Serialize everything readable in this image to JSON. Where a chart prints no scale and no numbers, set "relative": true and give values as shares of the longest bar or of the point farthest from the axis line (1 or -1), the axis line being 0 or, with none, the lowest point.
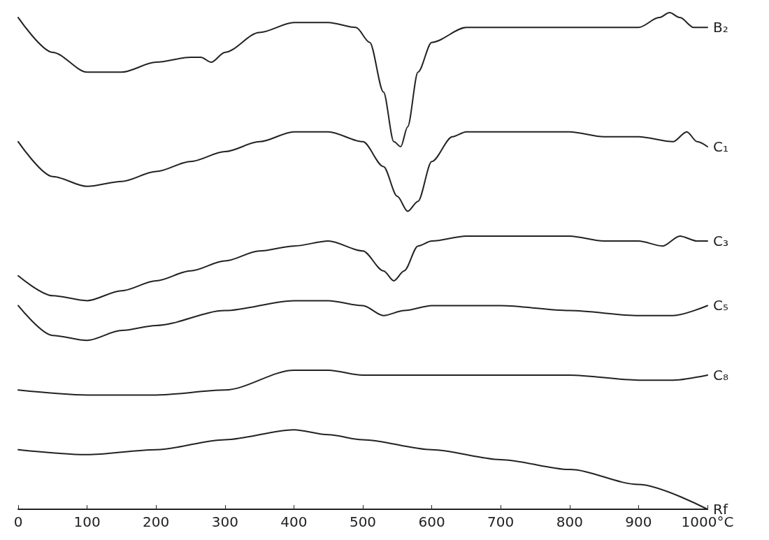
{
  "chart_data": {
    "type": "line",
    "relative": true,
    "legend": false,
    "grid": false,
    "marker": "none",
    "line_style": "solid",
    "tick_labels": "x",
    "xlim": [
      0,
      1000
    ],
    "xticks": [
      0,
      100,
      200,
      300,
      400,
      500,
      600,
      700,
      800,
      900,
      {
        "value": 1000,
        "label": "1000°C"
      }
    ],
    "series": [
      {
        "name": "B₂",
        "color": "#222222",
        "x": [
          0,
          50,
          100,
          150,
          200,
          250,
          265,
          280,
          300,
          350,
          400,
          450,
          490,
          510,
          530,
          545,
          555,
          565,
          580,
          600,
          650,
          700,
          750,
          800,
          850,
          900,
          930,
          945,
          960,
          980,
          1000
        ],
        "values": [
          0.99,
          0.92,
          0.88,
          0.88,
          0.9,
          0.91,
          0.91,
          0.9,
          0.92,
          0.96,
          0.98,
          0.98,
          0.97,
          0.94,
          0.84,
          0.74,
          0.73,
          0.77,
          0.88,
          0.94,
          0.97,
          0.97,
          0.97,
          0.97,
          0.97,
          0.97,
          0.99,
          1,
          0.99,
          0.97,
          0.97
        ]
      },
      {
        "name": "C₁",
        "color": "#222222",
        "x": [
          0,
          50,
          100,
          150,
          200,
          250,
          300,
          350,
          400,
          450,
          500,
          530,
          550,
          565,
          580,
          600,
          630,
          650,
          700,
          750,
          800,
          850,
          900,
          950,
          970,
          985,
          1000
        ],
        "values": [
          0.74,
          0.67,
          0.65,
          0.66,
          0.68,
          0.7,
          0.72,
          0.74,
          0.76,
          0.76,
          0.74,
          0.69,
          0.63,
          0.6,
          0.62,
          0.7,
          0.75,
          0.76,
          0.76,
          0.76,
          0.76,
          0.75,
          0.75,
          0.74,
          0.76,
          0.74,
          0.73
        ]
      },
      {
        "name": "C₃",
        "color": "#222222",
        "x": [
          0,
          50,
          100,
          150,
          200,
          250,
          300,
          350,
          400,
          450,
          500,
          530,
          545,
          560,
          580,
          600,
          650,
          700,
          800,
          850,
          900,
          935,
          960,
          985,
          1000
        ],
        "values": [
          0.47,
          0.43,
          0.42,
          0.44,
          0.46,
          0.48,
          0.5,
          0.52,
          0.53,
          0.54,
          0.52,
          0.48,
          0.46,
          0.48,
          0.53,
          0.54,
          0.55,
          0.55,
          0.55,
          0.54,
          0.54,
          0.53,
          0.55,
          0.54,
          0.54
        ]
      },
      {
        "name": "C₅",
        "color": "#222222",
        "x": [
          0,
          50,
          100,
          150,
          200,
          300,
          400,
          450,
          500,
          530,
          560,
          600,
          650,
          700,
          800,
          900,
          950,
          1000
        ],
        "values": [
          0.41,
          0.35,
          0.34,
          0.36,
          0.37,
          0.4,
          0.42,
          0.42,
          0.41,
          0.39,
          0.4,
          0.41,
          0.41,
          0.41,
          0.4,
          0.39,
          0.39,
          0.41
        ]
      },
      {
        "name": "C₈",
        "color": "#222222",
        "x": [
          0,
          100,
          200,
          300,
          400,
          450,
          500,
          600,
          700,
          800,
          900,
          950,
          1000
        ],
        "values": [
          0.24,
          0.23,
          0.23,
          0.24,
          0.28,
          0.28,
          0.27,
          0.27,
          0.27,
          0.27,
          0.26,
          0.26,
          0.27
        ]
      },
      {
        "name": "Rf",
        "color": "#222222",
        "x": [
          0,
          100,
          200,
          300,
          400,
          450,
          500,
          600,
          700,
          800,
          900,
          1000
        ],
        "values": [
          0.12,
          0.11,
          0.12,
          0.14,
          0.16,
          0.15,
          0.14,
          0.12,
          0.1,
          0.08,
          0.05,
          0
        ]
      }
    ]
  }
}
